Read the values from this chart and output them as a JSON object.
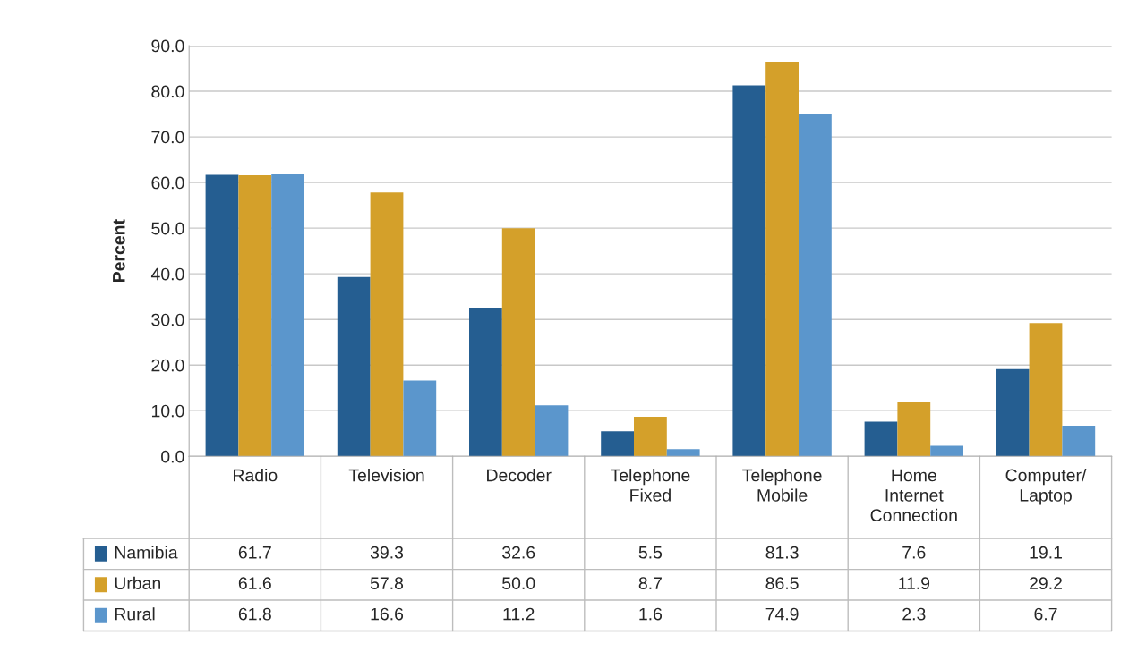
{
  "chart_data": {
    "type": "bar",
    "ylabel": "Percent",
    "categories": [
      "Radio",
      "Television",
      "Decoder",
      "Telephone\nFixed",
      "Telephone\nMobile",
      "Home\nInternet\nConnection",
      "Computer/\nLaptop"
    ],
    "series": [
      {
        "name": "Namibia",
        "color": "#255e91",
        "values": [
          61.7,
          39.3,
          32.6,
          5.5,
          81.3,
          7.6,
          19.1
        ],
        "value_labels": [
          "61.7",
          "39.3",
          "32.6",
          "5.5",
          "81.3",
          "7.6",
          "19.1"
        ]
      },
      {
        "name": "Urban",
        "color": "#d4a02a",
        "values": [
          61.6,
          57.8,
          50.0,
          8.7,
          86.5,
          11.9,
          29.2
        ],
        "value_labels": [
          "61.6",
          "57.8",
          "50.0",
          "8.7",
          "86.5",
          "11.9",
          "29.2"
        ]
      },
      {
        "name": "Rural",
        "color": "#5b96cc",
        "values": [
          61.8,
          16.6,
          11.2,
          1.6,
          74.9,
          2.3,
          6.7
        ],
        "value_labels": [
          "61.8",
          "16.6",
          "11.2",
          "1.6",
          "74.9",
          "2.3",
          "6.7"
        ]
      }
    ],
    "ylim": [
      0,
      90
    ],
    "yticks": [
      {
        "value": 0,
        "label": "0.0"
      },
      {
        "value": 10,
        "label": "10.0"
      },
      {
        "value": 20,
        "label": "20.0"
      },
      {
        "value": 30,
        "label": "30.0"
      },
      {
        "value": 40,
        "label": "40.0"
      },
      {
        "value": 50,
        "label": "50.0"
      },
      {
        "value": 60,
        "label": "60.0"
      },
      {
        "value": 70,
        "label": "70.0"
      },
      {
        "value": 80,
        "label": "80.0"
      },
      {
        "value": 90,
        "label": "90.0"
      }
    ],
    "grid": "y",
    "legend": "bottom"
  }
}
